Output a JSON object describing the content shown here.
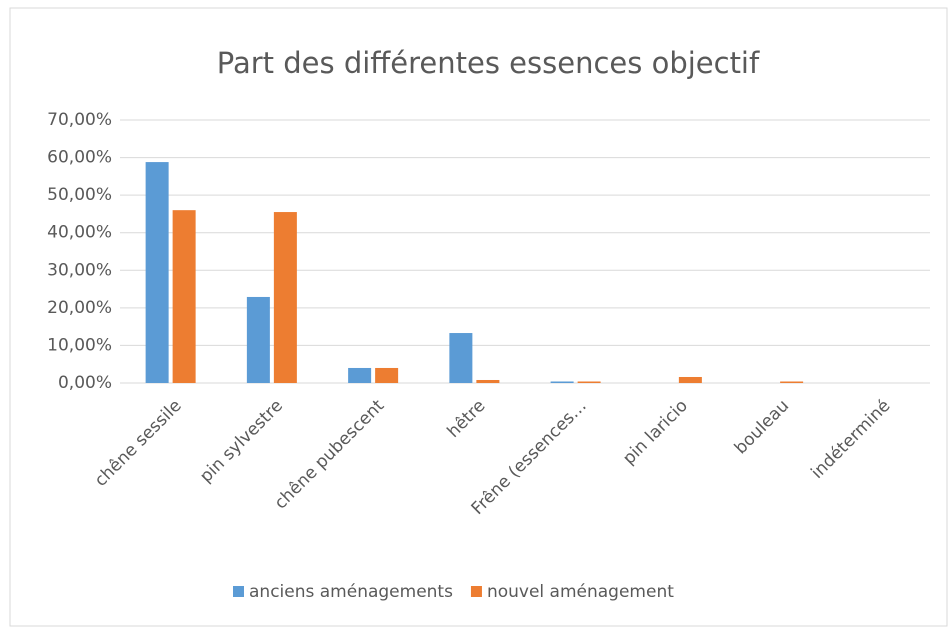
{
  "chart_data": {
    "type": "bar",
    "title": "Part des différentes essences objectif",
    "categories": [
      "chêne sessile",
      "pin sylvestre",
      "chêne pubescent",
      "hêtre",
      "Frêne (essences…",
      "pin laricio",
      "bouleau",
      "indéterminé"
    ],
    "series": [
      {
        "name": "anciens aménagements",
        "color": "#5b9bd5",
        "values": [
          58.8,
          22.9,
          4.0,
          13.3,
          0.4,
          0,
          0,
          0
        ]
      },
      {
        "name": "nouvel aménagement",
        "color": "#ed7d31",
        "values": [
          46.0,
          45.5,
          4.0,
          0.8,
          0.4,
          1.6,
          0.4,
          0
        ]
      }
    ],
    "ylim": [
      0,
      70
    ],
    "yticks": [
      {
        "value": 0,
        "label": "0,00%"
      },
      {
        "value": 10,
        "label": "10,00%"
      },
      {
        "value": 20,
        "label": "20,00%"
      },
      {
        "value": 30,
        "label": "30,00%"
      },
      {
        "value": 40,
        "label": "40,00%"
      },
      {
        "value": 50,
        "label": "50,00%"
      },
      {
        "value": 60,
        "label": "60,00%"
      },
      {
        "value": 70,
        "label": "70,00%"
      }
    ],
    "grid": true,
    "legend": "bottom"
  }
}
